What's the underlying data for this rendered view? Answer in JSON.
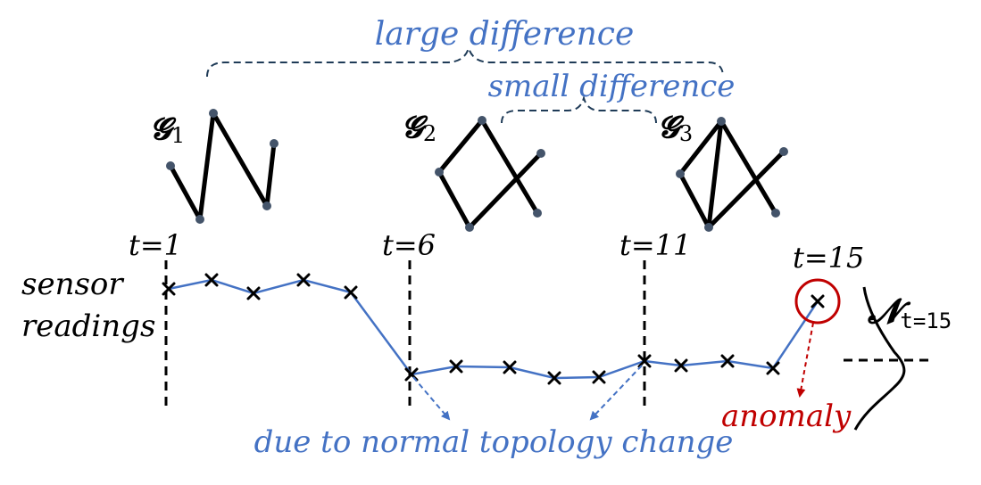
{
  "annotations": {
    "large_difference": "large difference",
    "small_difference": "small difference",
    "normal_change": "due to normal topology change",
    "anomaly": "anomaly",
    "sensor_line1": "sensor",
    "sensor_line2": "readings"
  },
  "graphs": [
    {
      "symbol": "𝓖",
      "sub": "1"
    },
    {
      "symbol": "𝓖",
      "sub": "2"
    },
    {
      "symbol": "𝓖",
      "sub": "3"
    }
  ],
  "time_markers": [
    "t=1",
    "t=6",
    "t=11",
    "t=15"
  ],
  "distribution": {
    "symbol": "𝓝",
    "sub": "t=15"
  },
  "colors": {
    "series": "#4472c4",
    "brace": "#1f3b57",
    "anomaly": "#c00000",
    "node": "#44546a",
    "edge": "#000000"
  }
}
